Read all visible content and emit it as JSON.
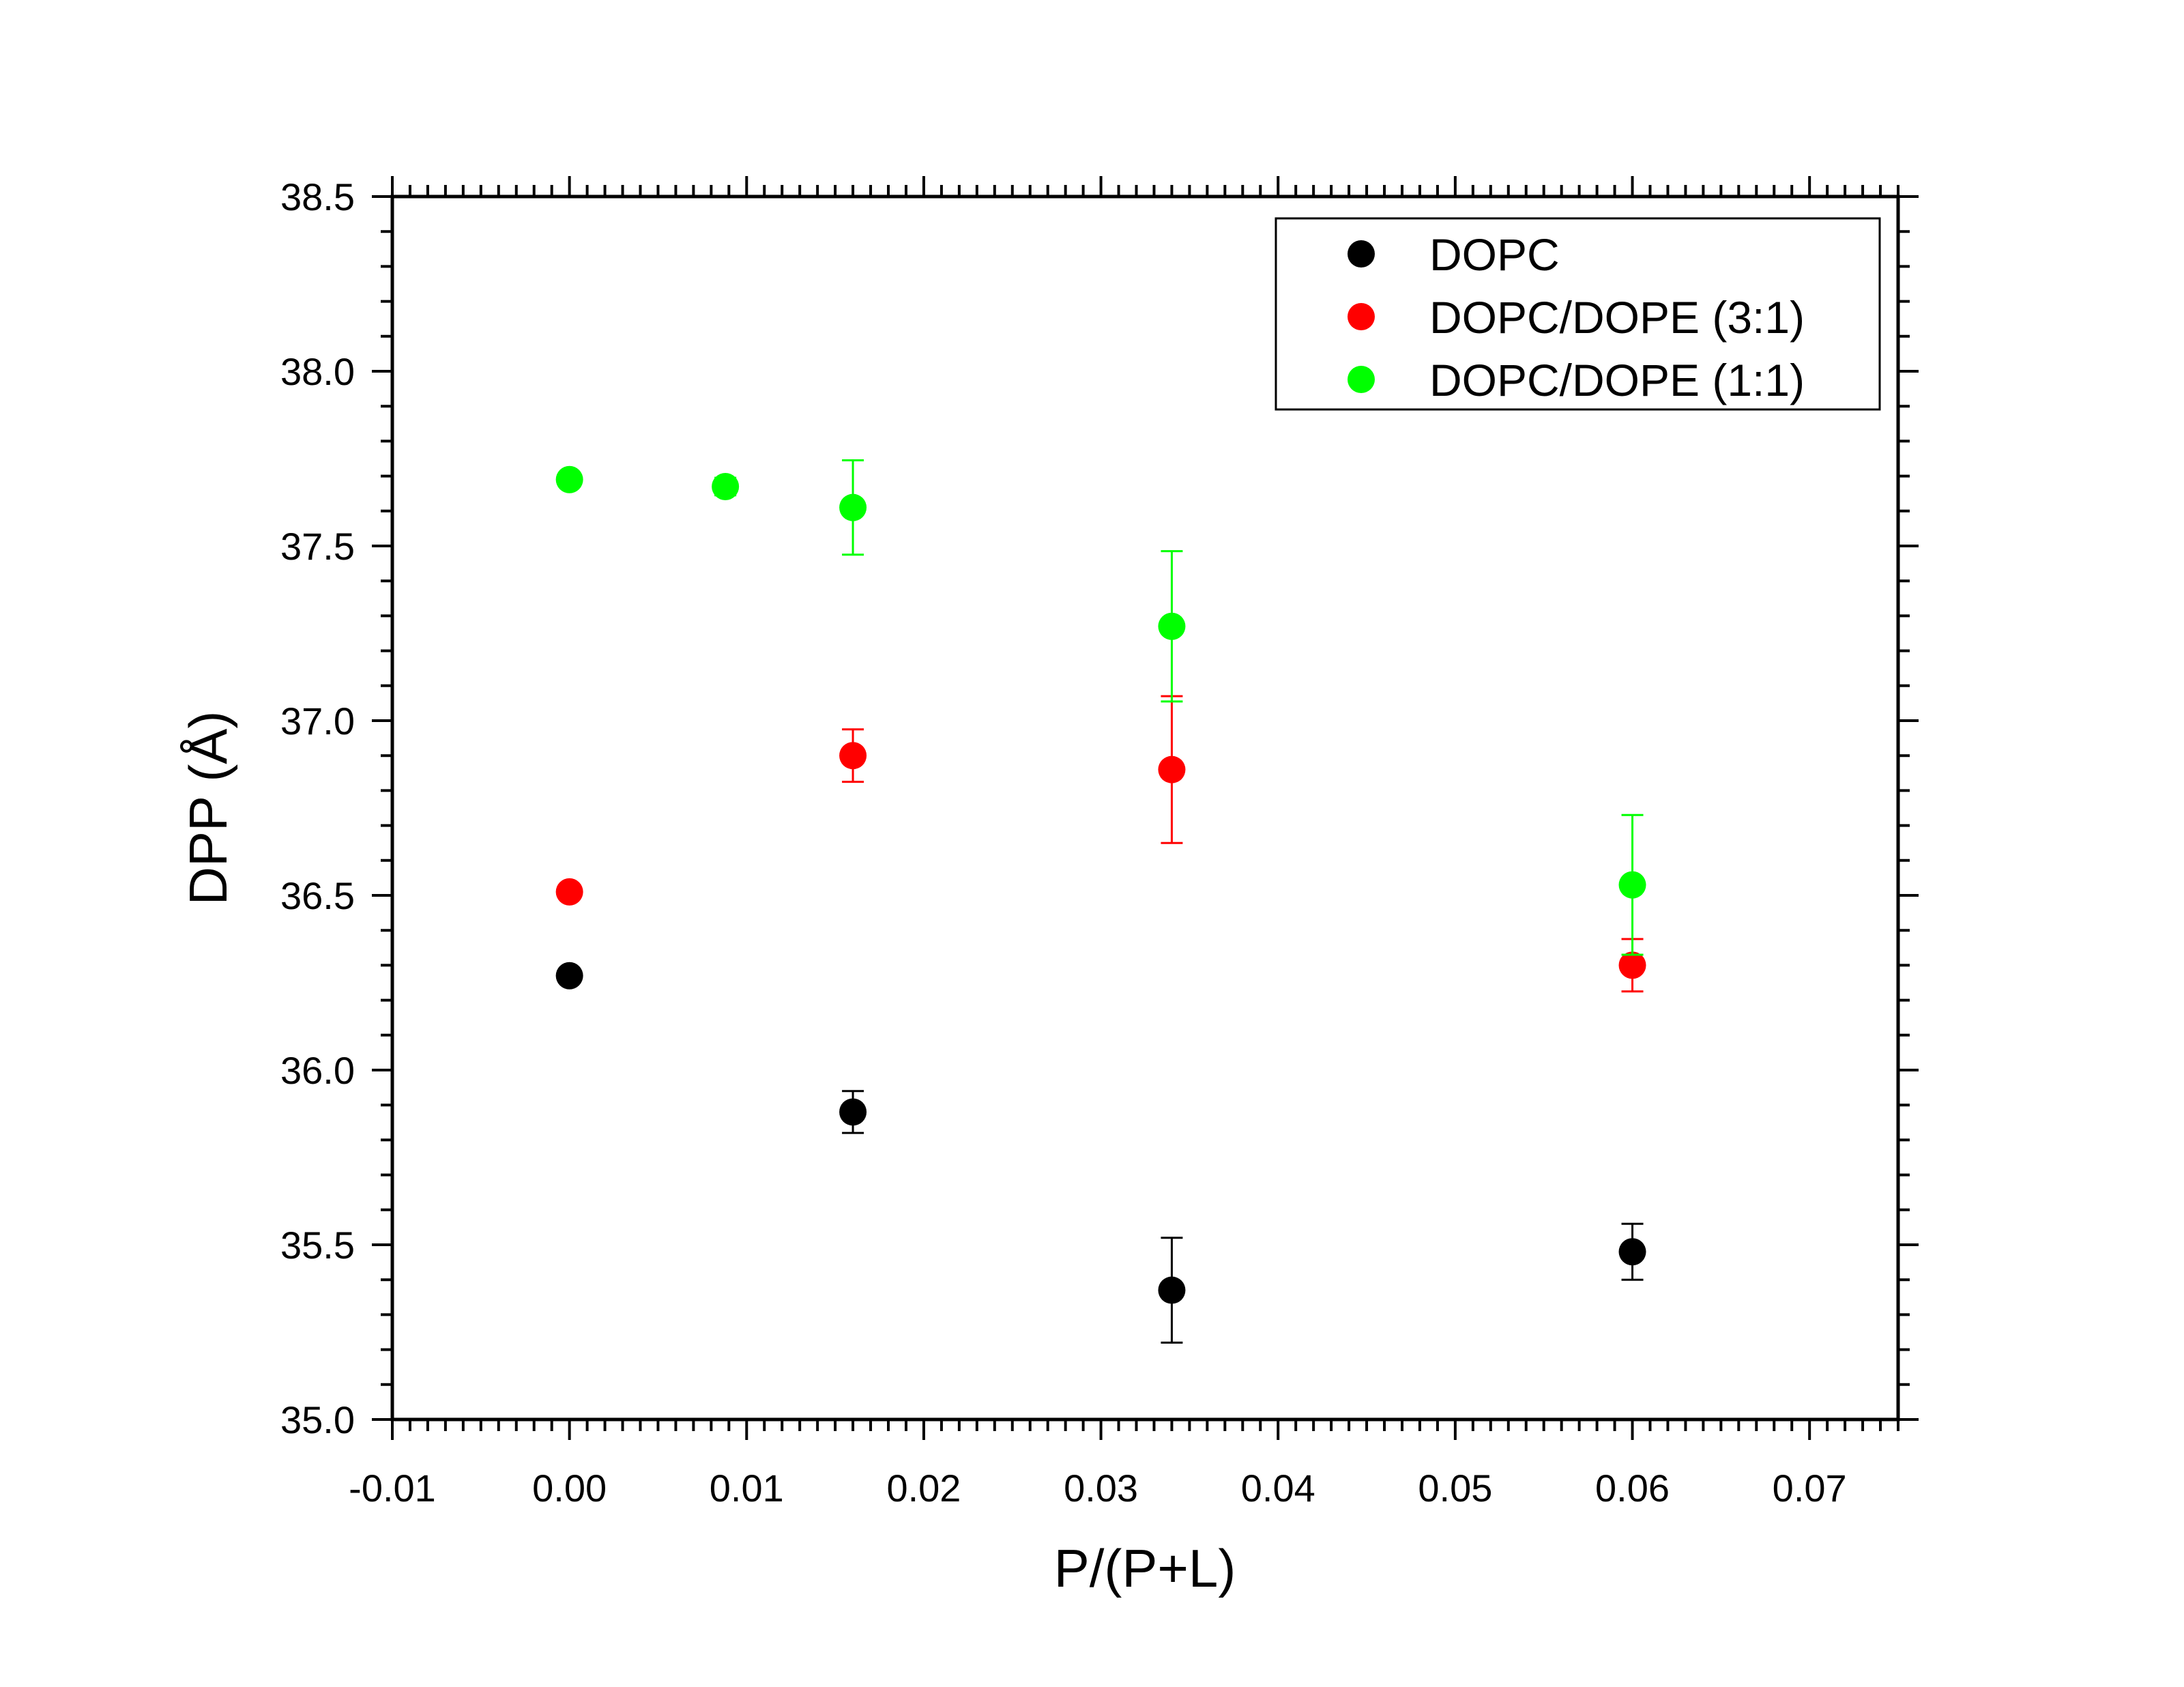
{
  "chart_data": {
    "type": "scatter",
    "title": "",
    "xlabel": "P/(P+L)",
    "ylabel": "DPP (Å)",
    "xlim": [
      -0.01,
      0.075
    ],
    "ylim": [
      35.0,
      38.5
    ],
    "x_ticks": [
      -0.01,
      0.0,
      0.01,
      0.02,
      0.03,
      0.04,
      0.05,
      0.06,
      0.07
    ],
    "x_tick_labels": [
      "-0.01",
      "0.00",
      "0.01",
      "0.02",
      "0.03",
      "0.04",
      "0.05",
      "0.06",
      "0.07"
    ],
    "y_ticks": [
      35.0,
      35.5,
      36.0,
      36.5,
      37.0,
      37.5,
      38.0,
      38.5
    ],
    "y_tick_labels": [
      "35.0",
      "35.5",
      "36.0",
      "36.5",
      "37.0",
      "37.5",
      "38.0",
      "38.5"
    ],
    "grid": false,
    "legend_position": "top-right",
    "series": [
      {
        "name": "DOPC",
        "color": "#000000",
        "points": [
          {
            "x": 0.0,
            "y": 36.27,
            "err": 0.0
          },
          {
            "x": 0.016,
            "y": 35.88,
            "err": 0.06
          },
          {
            "x": 0.034,
            "y": 35.37,
            "err": 0.15
          },
          {
            "x": 0.06,
            "y": 35.48,
            "err": 0.08
          }
        ]
      },
      {
        "name": "DOPC/DOPE (3:1)",
        "color": "#ff0000",
        "points": [
          {
            "x": 0.0,
            "y": 36.51,
            "err": 0.0
          },
          {
            "x": 0.016,
            "y": 36.9,
            "err": 0.075
          },
          {
            "x": 0.034,
            "y": 36.86,
            "err": 0.21
          },
          {
            "x": 0.06,
            "y": 36.3,
            "err": 0.075
          }
        ]
      },
      {
        "name": "DOPC/DOPE (1:1)",
        "color": "#00ff00",
        "points": [
          {
            "x": 0.0,
            "y": 37.69,
            "err": 0.0
          },
          {
            "x": 0.0088,
            "y": 37.67,
            "err": 0.025
          },
          {
            "x": 0.016,
            "y": 37.61,
            "err": 0.135
          },
          {
            "x": 0.034,
            "y": 37.27,
            "err": 0.215
          },
          {
            "x": 0.06,
            "y": 36.53,
            "err": 0.2
          }
        ]
      }
    ]
  }
}
